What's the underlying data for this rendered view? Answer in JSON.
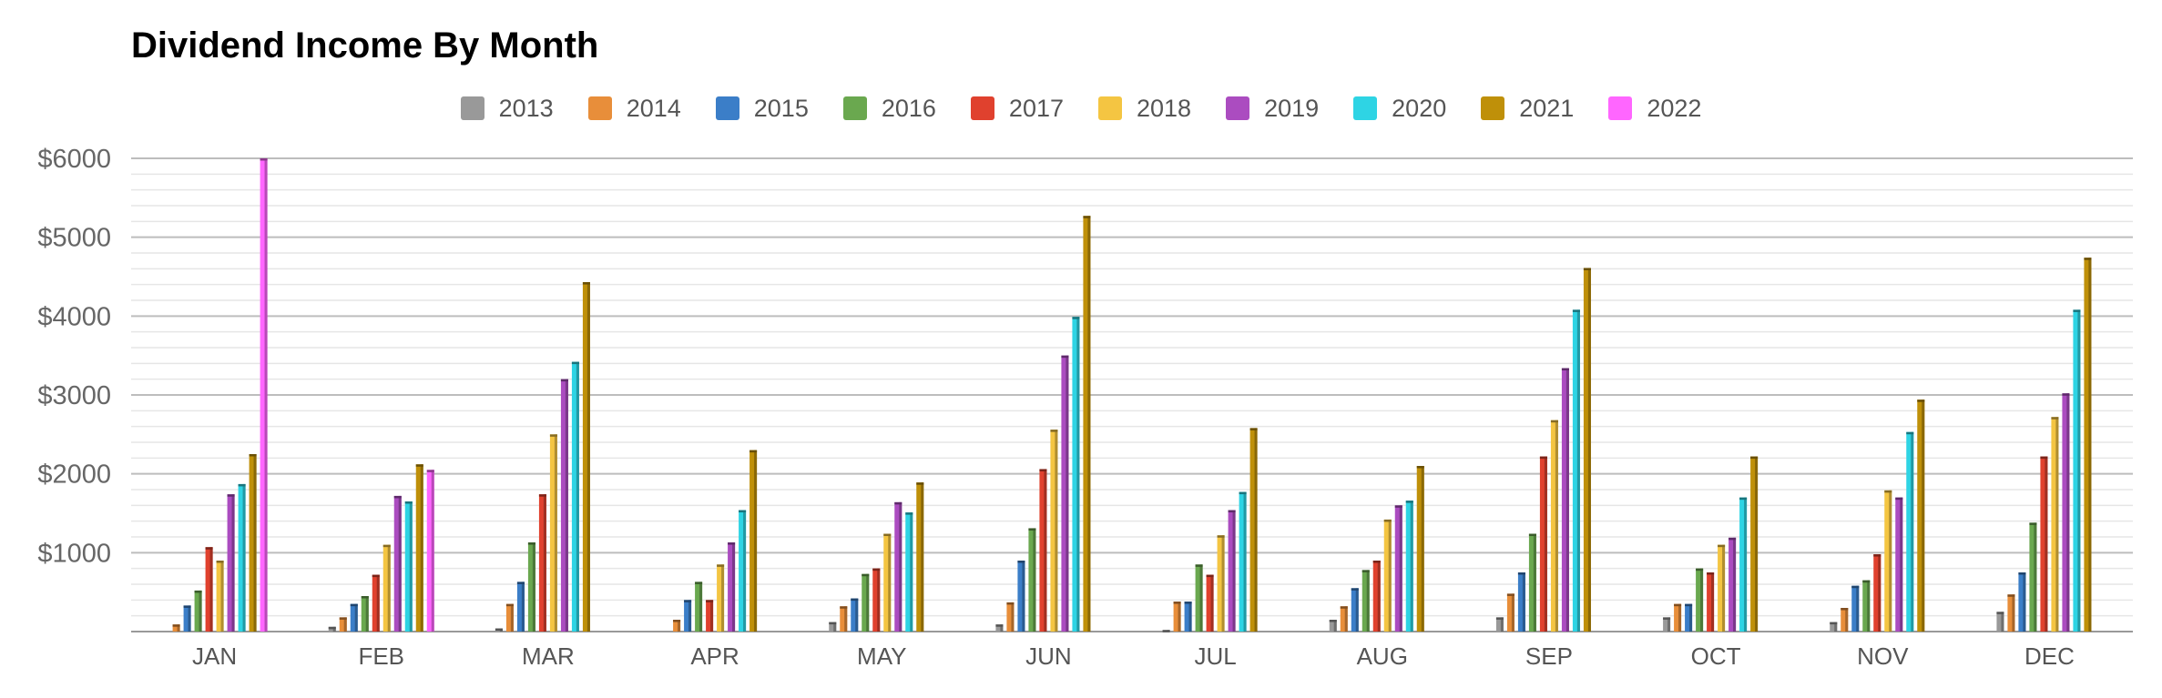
{
  "chart_data": {
    "type": "bar",
    "title": "Dividend Income By Month",
    "xlabel": "",
    "ylabel": "",
    "ylim": [
      0,
      6000
    ],
    "y_ticks": [
      "$1000",
      "$2000",
      "$3000",
      "$4000",
      "$5000",
      "$6000"
    ],
    "y_tick_values": [
      1000,
      2000,
      3000,
      4000,
      5000,
      6000
    ],
    "grid": true,
    "legend_position": "top",
    "categories": [
      "JAN",
      "FEB",
      "MAR",
      "APR",
      "MAY",
      "JUN",
      "JUL",
      "AUG",
      "SEP",
      "OCT",
      "NOV",
      "DEC"
    ],
    "series": [
      {
        "name": "2013",
        "color": "#999999",
        "values": [
          0,
          60,
          40,
          0,
          120,
          90,
          20,
          150,
          180,
          180,
          120,
          250
        ]
      },
      {
        "name": "2014",
        "color": "#e88e3a",
        "values": [
          90,
          180,
          350,
          150,
          320,
          370,
          380,
          320,
          480,
          350,
          300,
          470
        ]
      },
      {
        "name": "2015",
        "color": "#3b7ec8",
        "values": [
          330,
          350,
          630,
          400,
          420,
          900,
          380,
          550,
          750,
          350,
          580,
          750
        ]
      },
      {
        "name": "2016",
        "color": "#6aa84f",
        "values": [
          520,
          450,
          1130,
          630,
          730,
          1310,
          850,
          780,
          1240,
          800,
          650,
          1380
        ]
      },
      {
        "name": "2017",
        "color": "#e0412e",
        "values": [
          1070,
          720,
          1740,
          400,
          800,
          2060,
          720,
          900,
          2220,
          750,
          980,
          2220
        ]
      },
      {
        "name": "2018",
        "color": "#f4c542",
        "values": [
          900,
          1100,
          2500,
          850,
          1240,
          2560,
          1220,
          1420,
          2680,
          1100,
          1790,
          2720
        ]
      },
      {
        "name": "2019",
        "color": "#ab4cc0",
        "values": [
          1740,
          1720,
          3200,
          1130,
          1640,
          3500,
          1540,
          1600,
          3340,
          1190,
          1700,
          3020
        ]
      },
      {
        "name": "2020",
        "color": "#2ed4e4",
        "values": [
          1870,
          1650,
          3420,
          1540,
          1510,
          3990,
          1770,
          1660,
          4080,
          1700,
          2530,
          4080
        ]
      },
      {
        "name": "2021",
        "color": "#bf9009",
        "values": [
          2250,
          2120,
          4430,
          2300,
          1890,
          5270,
          2580,
          2100,
          4610,
          2220,
          2940,
          4740
        ]
      },
      {
        "name": "2022",
        "color": "#ff66ff",
        "values": [
          6000,
          2050,
          0,
          0,
          0,
          0,
          0,
          0,
          0,
          0,
          0,
          0
        ]
      }
    ]
  }
}
